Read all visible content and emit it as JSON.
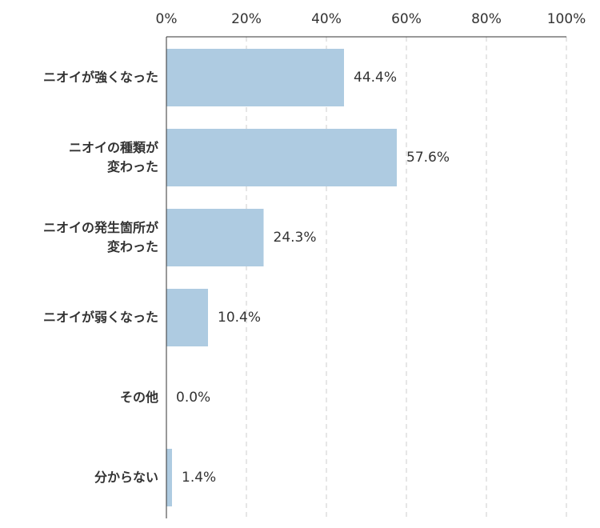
{
  "chart_data": {
    "type": "bar",
    "orientation": "horizontal",
    "categories": [
      "ニオイが強くなった",
      "ニオイの種類が\n変わった",
      "ニオイの発生箇所が\n変わった",
      "ニオイが弱くなった",
      "その他",
      "分からない"
    ],
    "values": [
      44.4,
      57.6,
      24.3,
      10.4,
      0.0,
      1.4
    ],
    "value_labels": [
      "44.4%",
      "57.6%",
      "24.3%",
      "10.4%",
      "0.0%",
      "1.4%"
    ],
    "color": "#aecbe1",
    "xlim": [
      0,
      100
    ],
    "xticks": [
      {
        "value": 0,
        "label": "0%"
      },
      {
        "value": 20,
        "label": "20%"
      },
      {
        "value": 40,
        "label": "40%"
      },
      {
        "value": 60,
        "label": "60%"
      },
      {
        "value": 80,
        "label": "80%"
      },
      {
        "value": 100,
        "label": "100%"
      }
    ],
    "grid": true
  }
}
